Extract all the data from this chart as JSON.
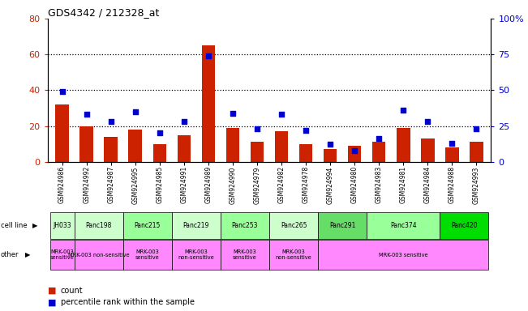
{
  "title": "GDS4342 / 212328_at",
  "gsm_labels": [
    "GSM924986",
    "GSM924992",
    "GSM924987",
    "GSM924995",
    "GSM924985",
    "GSM924991",
    "GSM924989",
    "GSM924990",
    "GSM924979",
    "GSM924982",
    "GSM924978",
    "GSM924994",
    "GSM924980",
    "GSM924983",
    "GSM924981",
    "GSM924984",
    "GSM924988",
    "GSM924993"
  ],
  "counts": [
    32,
    20,
    14,
    18,
    10,
    15,
    65,
    19,
    11,
    17,
    10,
    7,
    9,
    11,
    19,
    13,
    8,
    11
  ],
  "percentile_ranks": [
    49,
    33,
    28,
    35,
    20,
    28,
    74,
    34,
    23,
    33,
    22,
    12,
    8,
    16,
    36,
    28,
    13,
    23
  ],
  "cell_line_info": [
    {
      "label": "JH033",
      "start": 0,
      "end": 1,
      "color": "#ccffcc"
    },
    {
      "label": "Panc198",
      "start": 1,
      "end": 3,
      "color": "#ccffcc"
    },
    {
      "label": "Panc215",
      "start": 3,
      "end": 5,
      "color": "#99ff99"
    },
    {
      "label": "Panc219",
      "start": 5,
      "end": 7,
      "color": "#ccffcc"
    },
    {
      "label": "Panc253",
      "start": 7,
      "end": 9,
      "color": "#99ff99"
    },
    {
      "label": "Panc265",
      "start": 9,
      "end": 11,
      "color": "#ccffcc"
    },
    {
      "label": "Panc291",
      "start": 11,
      "end": 13,
      "color": "#66dd66"
    },
    {
      "label": "Panc374",
      "start": 13,
      "end": 16,
      "color": "#99ff99"
    },
    {
      "label": "Panc420",
      "start": 16,
      "end": 18,
      "color": "#00dd00"
    }
  ],
  "other_info": [
    {
      "label": "MRK-003\nsensitive",
      "start": 0,
      "end": 1,
      "color": "#ff88ff"
    },
    {
      "label": "MRK-003 non-sensitive",
      "start": 1,
      "end": 3,
      "color": "#ff88ff"
    },
    {
      "label": "MRK-003\nsensitive",
      "start": 3,
      "end": 5,
      "color": "#ff88ff"
    },
    {
      "label": "MRK-003\nnon-sensitive",
      "start": 5,
      "end": 7,
      "color": "#ff88ff"
    },
    {
      "label": "MRK-003\nsensitive",
      "start": 7,
      "end": 9,
      "color": "#ff88ff"
    },
    {
      "label": "MRK-003\nnon-sensitive",
      "start": 9,
      "end": 11,
      "color": "#ff88ff"
    },
    {
      "label": "MRK-003 sensitive",
      "start": 11,
      "end": 18,
      "color": "#ff88ff"
    }
  ],
  "bar_color": "#cc2200",
  "dot_color": "#0000cc",
  "left_ylim": [
    0,
    80
  ],
  "right_ylim": [
    0,
    100
  ],
  "left_yticks": [
    0,
    20,
    40,
    60,
    80
  ],
  "right_yticks": [
    0,
    25,
    50,
    75,
    100
  ],
  "right_yticklabels": [
    "0",
    "25",
    "50",
    "75",
    "100%"
  ],
  "bg_color": "#ffffff",
  "grid_color": "#000000",
  "tick_label_color_left": "#cc2200",
  "tick_label_color_right": "#0000cc"
}
